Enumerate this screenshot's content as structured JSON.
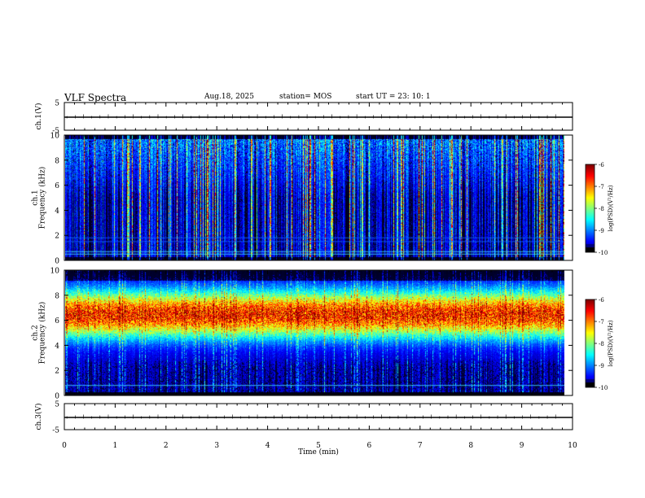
{
  "header": {
    "title": "VLF Spectra",
    "date": "Aug.18, 2025",
    "station": "station= MOS",
    "start": "start  UT =   23: 10: 1"
  },
  "chart_data": [
    {
      "type": "line",
      "name": "ch1-waveform",
      "ylabel": "ch.1(V)",
      "ylim": [
        -5,
        5
      ],
      "yticks": [
        "5",
        "-5"
      ],
      "xlim": [
        0,
        10
      ],
      "series": [
        {
          "name": "ch.1",
          "x": [
            0,
            10
          ],
          "values": [
            -0.3,
            -0.3
          ]
        }
      ]
    },
    {
      "type": "heatmap",
      "name": "ch1-spectrogram",
      "ylabel": "ch.1\nFrequency (kHz)",
      "ylim": [
        0,
        10
      ],
      "yticks": [
        "0",
        "2",
        "4",
        "6",
        "8",
        "10"
      ],
      "xlim": [
        0,
        9.85
      ],
      "colorbar": {
        "label": "log(PSD)(V²/Hz)",
        "range": [
          -10,
          -6
        ],
        "ticks": [
          "-6",
          "-7",
          "-8",
          "-9",
          "-10"
        ]
      },
      "horizontal_lines_khz": [
        0.5,
        0.7,
        1.5,
        1.8
      ],
      "band": "broadband impulsive (sferics), background low"
    },
    {
      "type": "heatmap",
      "name": "ch2-spectrogram",
      "ylabel": "ch.2\nFrequency (kHz)",
      "ylim": [
        0,
        10
      ],
      "yticks": [
        "0",
        "2",
        "4",
        "6",
        "8",
        "10"
      ],
      "xlim": [
        0,
        9.85
      ],
      "colorbar": {
        "label": "log(PSD)(V²/Hz)",
        "range": [
          -10,
          -6
        ],
        "ticks": [
          "-6",
          "-7",
          "-8",
          "-9",
          "-10"
        ]
      },
      "horizontal_lines_khz": [
        0.8
      ],
      "band": "strong emission centred near 6.5 kHz (about 4-9 kHz)"
    },
    {
      "type": "line",
      "name": "ch3-waveform",
      "ylabel": "ch.3(V)",
      "ylim": [
        -5,
        5
      ],
      "yticks": [
        "5",
        "-5"
      ],
      "xlim": [
        0,
        10
      ],
      "series": [
        {
          "name": "ch.3",
          "x": [
            0,
            10
          ],
          "values": [
            -0.3,
            -0.3
          ]
        }
      ]
    }
  ],
  "x_axis": {
    "label": "Time  (min)",
    "ticks": [
      "0",
      "1",
      "2",
      "3",
      "4",
      "5",
      "6",
      "7",
      "8",
      "9",
      "10"
    ]
  },
  "colors": {
    "background": "#ffffff",
    "axis": "#000000",
    "spectrum_low": "#000000",
    "spectrum_high": "#ff0000"
  }
}
